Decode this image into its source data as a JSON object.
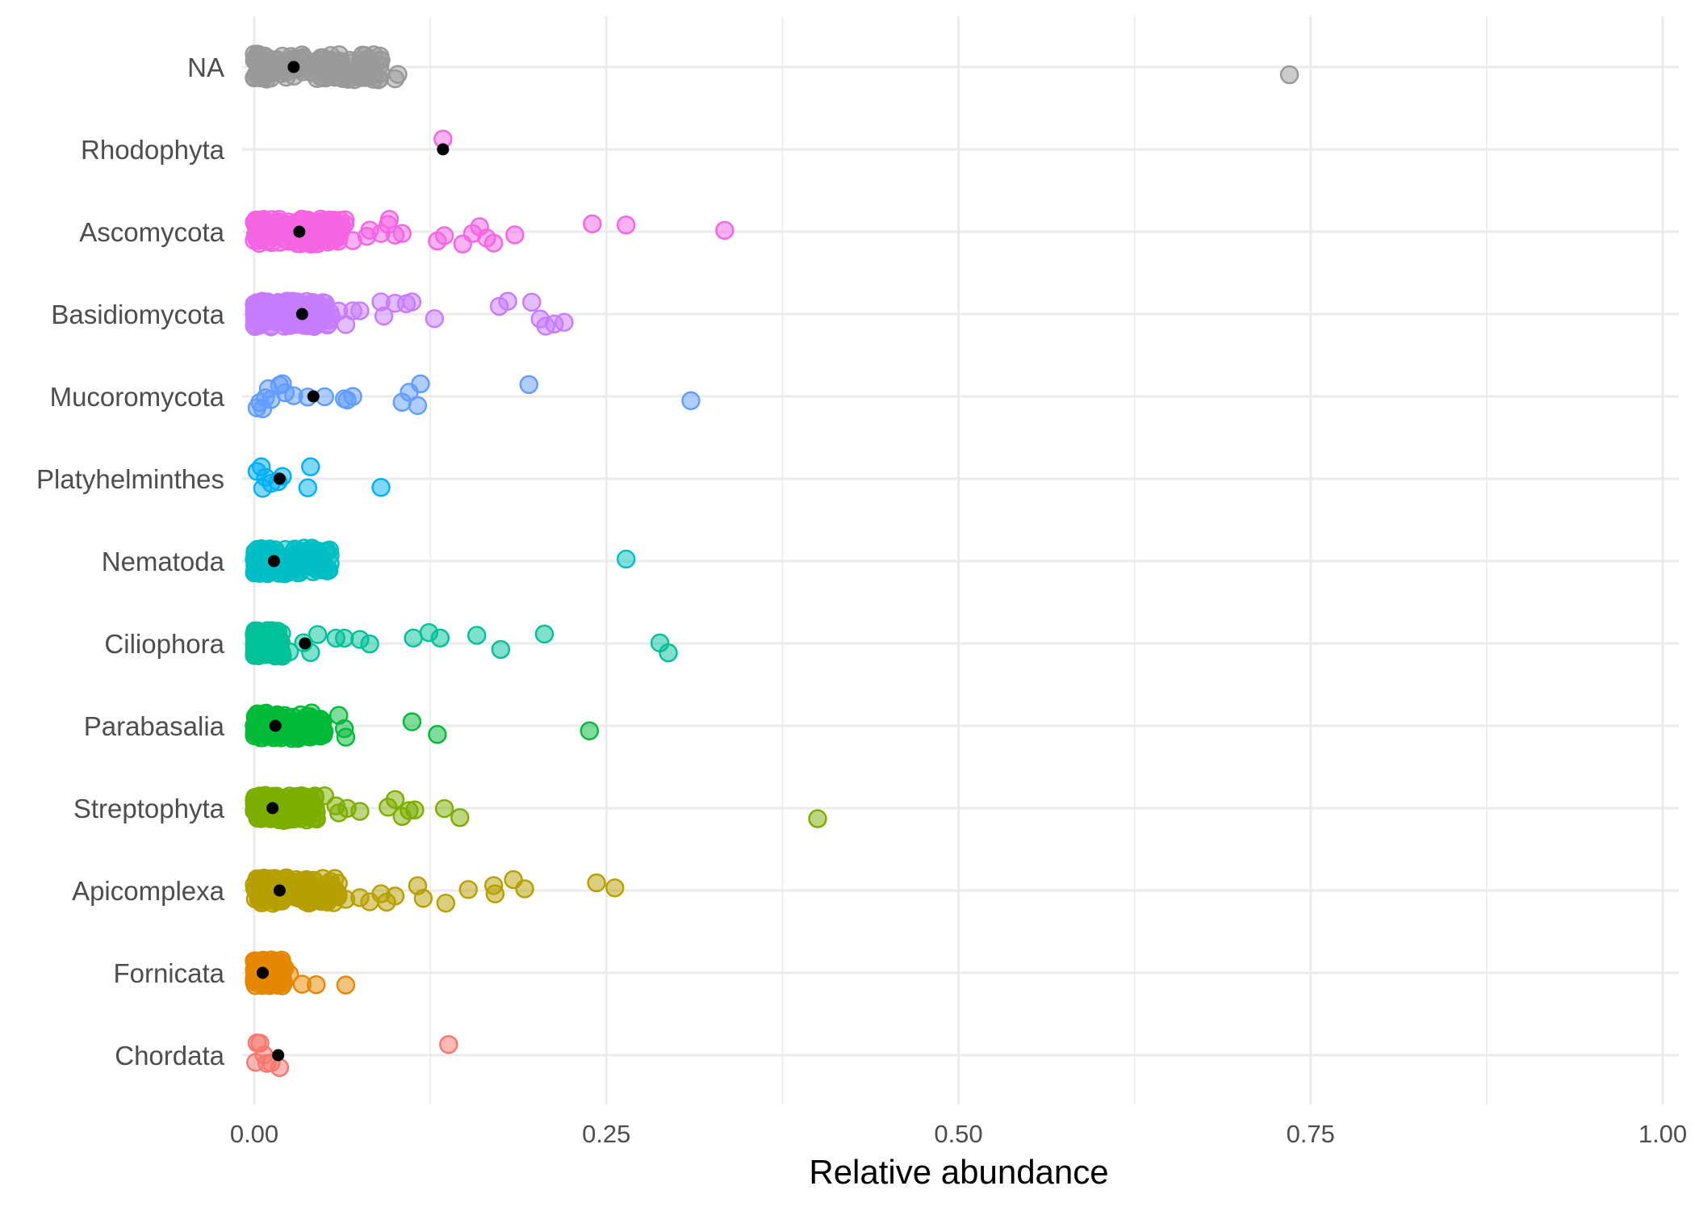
{
  "chart_data": {
    "type": "scatter",
    "title": "",
    "xlabel": "Relative abundance",
    "ylabel": "",
    "xlim": [
      0,
      1
    ],
    "x_ticks": [
      "0.00",
      "0.25",
      "0.50",
      "0.75",
      "1.00"
    ],
    "x_tick_values": [
      0,
      0.25,
      0.5,
      0.75,
      1.0
    ],
    "grid": true,
    "legend": "none",
    "categories": [
      "NA",
      "Rhodophyta",
      "Ascomycota",
      "Basidiomycota",
      "Mucoromycota",
      "Platyhelminthes",
      "Nematoda",
      "Ciliophora",
      "Parabasalia",
      "Streptophyta",
      "Apicomplexa",
      "Fornicata",
      "Chordata"
    ],
    "series": [
      {
        "category": "NA",
        "color": "#999999",
        "mean": 0.028,
        "dense_max": 0.09,
        "x": [
          0.003,
          0.02,
          0.04,
          0.06,
          0.08,
          0.09,
          0.1,
          0.102,
          0.08,
          0.09,
          0.735
        ]
      },
      {
        "category": "Rhodophyta",
        "color": "#F564E3",
        "mean": 0.134,
        "dense_max": 0,
        "x": [
          0.134
        ]
      },
      {
        "category": "Ascomycota",
        "color": "#F564E3",
        "mean": 0.032,
        "dense_max": 0.065,
        "x": [
          0.07,
          0.08,
          0.09,
          0.095,
          0.1,
          0.105,
          0.082,
          0.096,
          0.13,
          0.135,
          0.148,
          0.16,
          0.165,
          0.17,
          0.155,
          0.185,
          0.24,
          0.264,
          0.334
        ]
      },
      {
        "category": "Basidiomycota",
        "color": "#C77CFF",
        "mean": 0.034,
        "dense_max": 0.055,
        "x": [
          0.06,
          0.065,
          0.07,
          0.075,
          0.09,
          0.1,
          0.108,
          0.112,
          0.092,
          0.128,
          0.174,
          0.18,
          0.197,
          0.203,
          0.207,
          0.213,
          0.22
        ]
      },
      {
        "category": "Mucoromycota",
        "color": "#619CFF",
        "mean": 0.042,
        "dense_max": 0,
        "x": [
          0.002,
          0.004,
          0.008,
          0.012,
          0.018,
          0.022,
          0.028,
          0.038,
          0.05,
          0.064,
          0.066,
          0.07,
          0.105,
          0.11,
          0.116,
          0.118,
          0.195,
          0.31,
          0.006,
          0.01,
          0.02
        ]
      },
      {
        "category": "Platyhelminthes",
        "color": "#00B0F6",
        "mean": 0.018,
        "dense_max": 0,
        "x": [
          0.002,
          0.005,
          0.008,
          0.012,
          0.017,
          0.02,
          0.038,
          0.04,
          0.09,
          0.006
        ]
      },
      {
        "category": "Nematoda",
        "color": "#00BFC4",
        "mean": 0.014,
        "dense_max": 0.055,
        "x": [
          0.264
        ]
      },
      {
        "category": "Ciliophora",
        "color": "#00C19A",
        "mean": 0.036,
        "dense_max": 0.02,
        "x": [
          0.025,
          0.035,
          0.04,
          0.045,
          0.058,
          0.064,
          0.075,
          0.082,
          0.113,
          0.124,
          0.132,
          0.158,
          0.175,
          0.206,
          0.288,
          0.294
        ]
      },
      {
        "category": "Parabasalia",
        "color": "#00BA38",
        "mean": 0.015,
        "dense_max": 0.05,
        "x": [
          0.06,
          0.065,
          0.064,
          0.112,
          0.13,
          0.238
        ]
      },
      {
        "category": "Streptophyta",
        "color": "#7CAE00",
        "mean": 0.013,
        "dense_max": 0.045,
        "x": [
          0.05,
          0.058,
          0.06,
          0.066,
          0.075,
          0.095,
          0.1,
          0.105,
          0.11,
          0.114,
          0.135,
          0.146,
          0.4
        ]
      },
      {
        "category": "Apicomplexa",
        "color": "#B79F00",
        "mean": 0.018,
        "dense_max": 0.06,
        "x": [
          0.065,
          0.075,
          0.082,
          0.09,
          0.094,
          0.1,
          0.12,
          0.116,
          0.136,
          0.152,
          0.17,
          0.171,
          0.184,
          0.192,
          0.243,
          0.256
        ]
      },
      {
        "category": "Fornicata",
        "color": "#E58700",
        "mean": 0.006,
        "dense_max": 0.022,
        "x": [
          0.025,
          0.034,
          0.044,
          0.065
        ]
      },
      {
        "category": "Chordata",
        "color": "#F8766D",
        "mean": 0.017,
        "dense_max": 0,
        "x": [
          0.001,
          0.002,
          0.004,
          0.007,
          0.009,
          0.012,
          0.018,
          0.138
        ]
      }
    ]
  }
}
